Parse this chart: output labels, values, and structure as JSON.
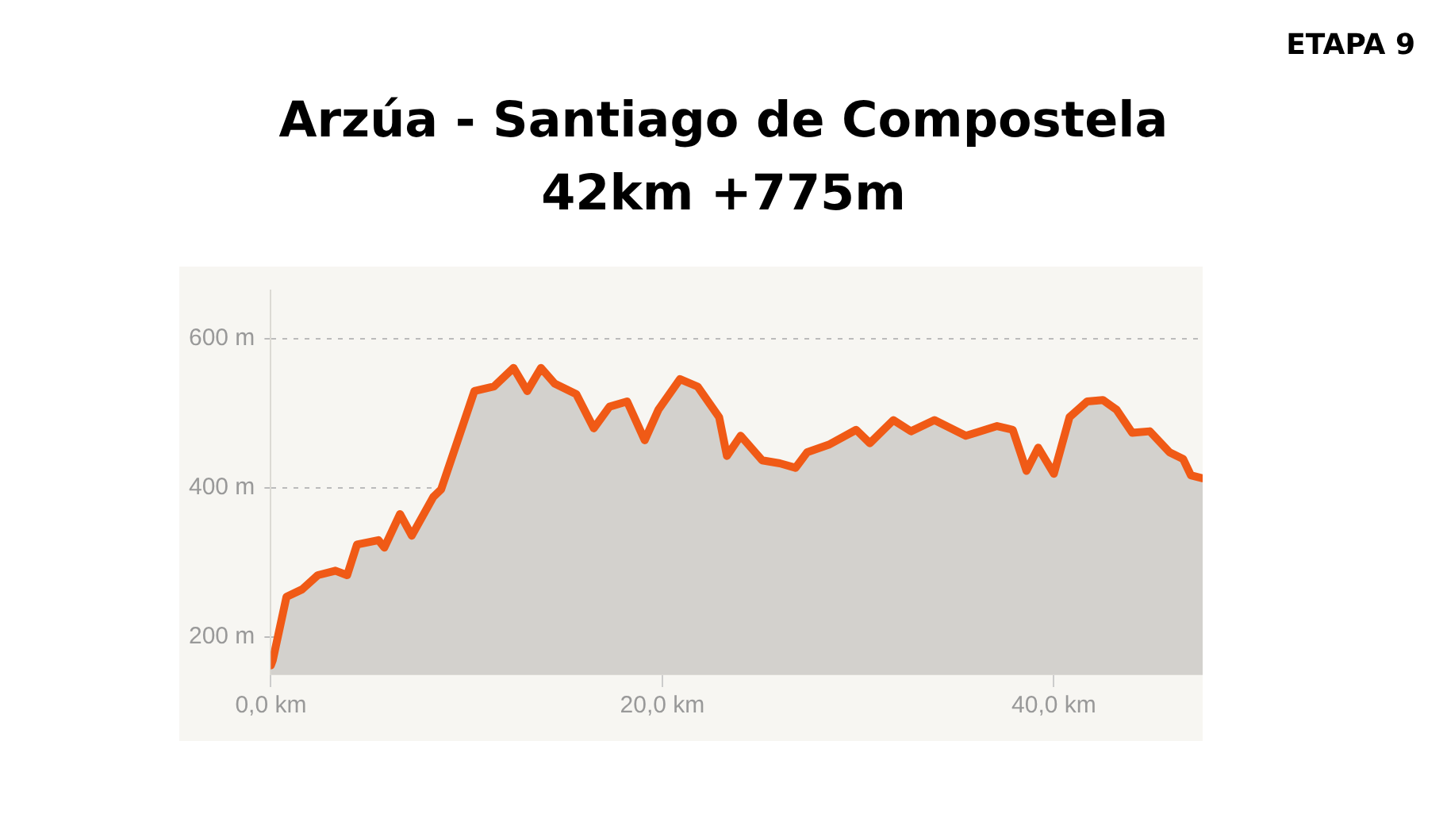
{
  "chart_data": {
    "type": "area",
    "title": "Arzúa - Santiago de Compostela",
    "subtitle": "42km +775m",
    "annotations": [
      "ETAPA 9"
    ],
    "series": [
      {
        "color": "#f05a16",
        "x": [
          0,
          0.1,
          0.8,
          1.6,
          2.4,
          3.3,
          3.9,
          4.4,
          5.5,
          5.8,
          6.6,
          7.2,
          8.3,
          8.7,
          10.4,
          11.4,
          12.4,
          13.1,
          13.8,
          14.5,
          15.6,
          16.5,
          17.3,
          18.2,
          19.1,
          19.8,
          20.9,
          21.8,
          22.9,
          23.3,
          24.0,
          25.1,
          26.0,
          26.8,
          27.4,
          28.5,
          29.9,
          30.6,
          31.8,
          32.7,
          33.9,
          35.5,
          36.0,
          37.1,
          37.9,
          38.6,
          39.2,
          40.0,
          40.8,
          41.7,
          42.5,
          43.2,
          44.0,
          44.9,
          45.9,
          46.6,
          47.0,
          47.6
        ],
        "values": [
          162,
          169,
          254,
          264,
          283,
          289,
          283,
          324,
          330,
          320,
          365,
          336,
          388,
          398,
          530,
          536,
          561,
          530,
          561,
          540,
          526,
          480,
          509,
          516,
          464,
          505,
          546,
          536,
          495,
          443,
          470,
          437,
          433,
          427,
          448,
          458,
          478,
          460,
          491,
          476,
          491,
          470,
          474,
          483,
          478,
          423,
          454,
          419,
          495,
          516,
          518,
          505,
          474,
          476,
          448,
          439,
          417,
          413
        ]
      }
    ],
    "xlim": [
      0,
      47.6
    ],
    "ylim": [
      150,
      665
    ],
    "xticks": [
      {
        "value": 0,
        "label": "0,0 km"
      },
      {
        "value": 20,
        "label": "20,0 km"
      },
      {
        "value": 40,
        "label": "40,0 km"
      }
    ],
    "yticks": [
      {
        "value": 200,
        "label": "200 m"
      },
      {
        "value": 400,
        "label": "400 m"
      },
      {
        "value": 600,
        "label": "600 m"
      }
    ],
    "grid": "y"
  }
}
